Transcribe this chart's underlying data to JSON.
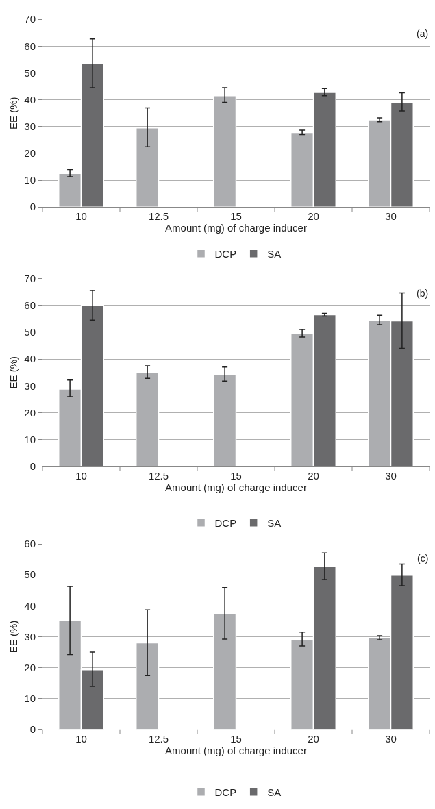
{
  "chart_data": [
    {
      "type": "bar",
      "categories": [
        "10",
        "12.5",
        "15",
        "20",
        "30"
      ],
      "xlabel": "Amount (mg) of charge inducer",
      "ylabel": "EE (%)",
      "ylim": [
        0,
        70
      ],
      "yticks": [
        0,
        10,
        20,
        30,
        40,
        50,
        60,
        70
      ],
      "grid": "y",
      "legend": "bottom",
      "annotations": [
        "(a)"
      ],
      "series": [
        {
          "name": "DCP",
          "color": "#acadb0",
          "values": [
            12.5,
            29.5,
            41.5,
            27.8,
            32.5
          ],
          "errors": [
            [
              11.3,
              14.0
            ],
            [
              22.5,
              37
            ],
            [
              39,
              44.5
            ],
            [
              27,
              28.7
            ],
            [
              31.8,
              33.3
            ]
          ]
        },
        {
          "name": "SA",
          "color": "#6a6a6c",
          "values": [
            53.5,
            null,
            null,
            42.7,
            38.8
          ],
          "errors": [
            [
              44.5,
              62.7
            ],
            null,
            null,
            [
              41.5,
              44.2
            ],
            [
              35.8,
              42.6
            ]
          ]
        }
      ]
    },
    {
      "type": "bar",
      "categories": [
        "10",
        "12.5",
        "15",
        "20",
        "30"
      ],
      "xlabel": "Amount (mg) of charge inducer",
      "ylabel": "EE (%)",
      "ylim": [
        0,
        70
      ],
      "yticks": [
        0,
        10,
        20,
        30,
        40,
        50,
        60,
        70
      ],
      "grid": "y",
      "legend": "bottom",
      "annotations": [
        "(b)"
      ],
      "series": [
        {
          "name": "DCP",
          "color": "#acadb0",
          "values": [
            28.8,
            35,
            34.3,
            49.6,
            54.3
          ],
          "errors": [
            [
              26,
              32.2
            ],
            [
              32.8,
              37.5
            ],
            [
              31.8,
              37
            ],
            [
              48.2,
              51
            ],
            [
              52.8,
              56.3
            ]
          ]
        },
        {
          "name": "SA",
          "color": "#6a6a6c",
          "values": [
            60,
            null,
            null,
            56.5,
            54.2
          ],
          "errors": [
            [
              54.5,
              65.6
            ],
            null,
            null,
            [
              56,
              57
            ],
            [
              44,
              64.7
            ]
          ]
        }
      ]
    },
    {
      "type": "bar",
      "categories": [
        "10",
        "12.5",
        "15",
        "20",
        "30"
      ],
      "xlabel": "Amount (mg) of charge inducer",
      "ylabel": "EE (%)",
      "ylim": [
        0,
        60
      ],
      "yticks": [
        0,
        10,
        20,
        30,
        40,
        50,
        60
      ],
      "grid": "y",
      "legend": "bottom",
      "annotations": [
        "(c)"
      ],
      "series": [
        {
          "name": "DCP",
          "color": "#acadb0",
          "values": [
            35.2,
            28,
            37.4,
            29.1,
            29.7
          ],
          "errors": [
            [
              24.2,
              46.3
            ],
            [
              17.4,
              38.7
            ],
            [
              29.2,
              45.9
            ],
            [
              27,
              31.5
            ],
            [
              29,
              30.3
            ]
          ]
        },
        {
          "name": "SA",
          "color": "#6a6a6c",
          "values": [
            19.3,
            null,
            null,
            52.7,
            49.9
          ],
          "errors": [
            [
              13.9,
              25
            ],
            null,
            null,
            [
              48.5,
              57.1
            ],
            [
              46.5,
              53.5
            ]
          ]
        }
      ]
    }
  ]
}
